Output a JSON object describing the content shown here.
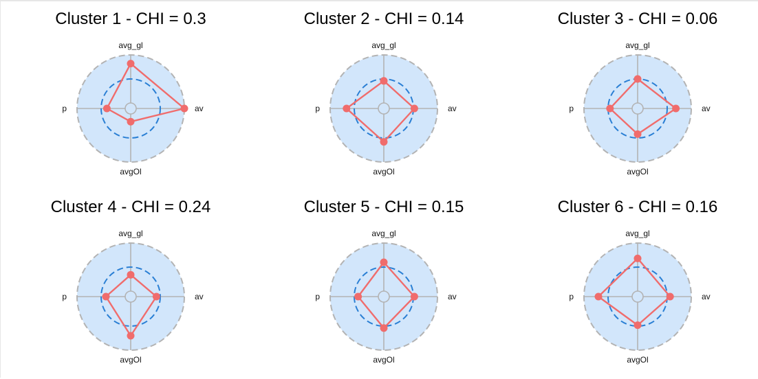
{
  "chart_data": {
    "type": "radar",
    "colors": {
      "background_disk": "#d2e6fb",
      "outer_ring": "#b3b3b3",
      "grid_lines": "#b3b3b3",
      "reference_ring": "#2a7fd4",
      "series_line": "#f06c6c",
      "series_point": "#f06c6c"
    },
    "axes": [
      "avg_gl",
      "av",
      "avgOl",
      "p"
    ],
    "range": [
      0,
      1
    ],
    "reference_value": 0.5,
    "panels": [
      {
        "title": "Cluster 1 - CHI = 0.3",
        "values": [
          0.82,
          1.0,
          0.16,
          0.38
        ]
      },
      {
        "title": "Cluster 2 - CHI = 0.14",
        "values": [
          0.46,
          0.52,
          0.58,
          0.66
        ]
      },
      {
        "title": "Cluster 3 - CHI = 0.06",
        "values": [
          0.5,
          0.68,
          0.42,
          0.46
        ]
      },
      {
        "title": "Cluster 4 - CHI = 0.24",
        "values": [
          0.34,
          0.42,
          0.7,
          0.4
        ]
      },
      {
        "title": "Cluster 5 - CHI = 0.15",
        "values": [
          0.6,
          0.52,
          0.54,
          0.42
        ]
      },
      {
        "title": "Cluster 6 - CHI = 0.16",
        "values": [
          0.68,
          0.56,
          0.48,
          0.7
        ]
      }
    ]
  }
}
